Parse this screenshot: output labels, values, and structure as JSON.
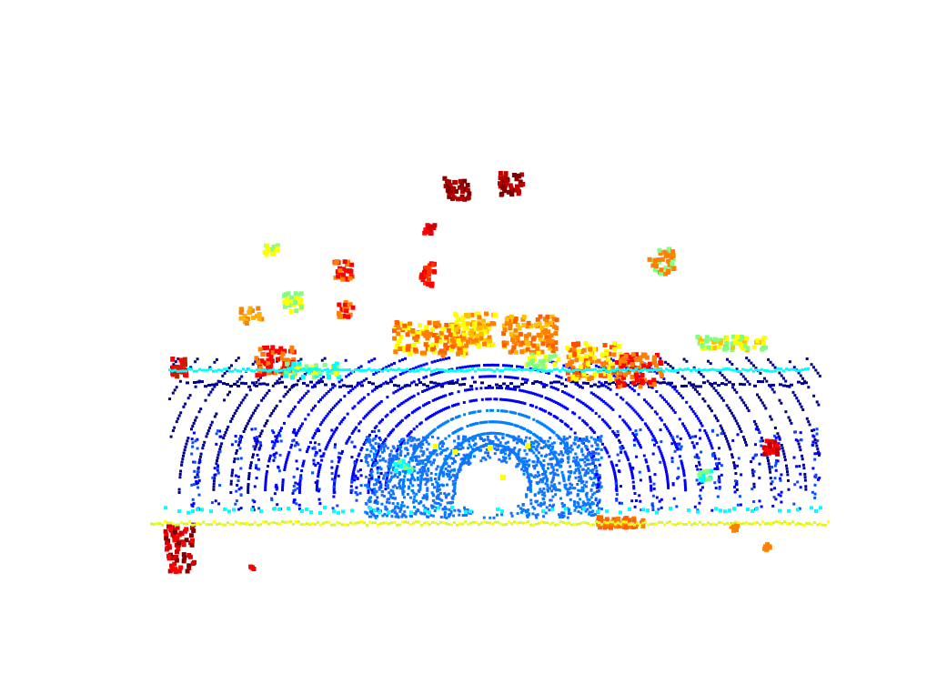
{
  "image": {
    "subject": "lidar-point-cloud",
    "colormap": "jet",
    "background": "#ffffff",
    "palette": {
      "deep_blue": "#00008f",
      "blue": "#0000ff",
      "azure": "#0080ff",
      "cyan": "#00ffff",
      "lime": "#80ff80",
      "yellow": "#ffff00",
      "orange": "#ff8000",
      "red": "#ff0000",
      "dark_red": "#800000"
    }
  }
}
